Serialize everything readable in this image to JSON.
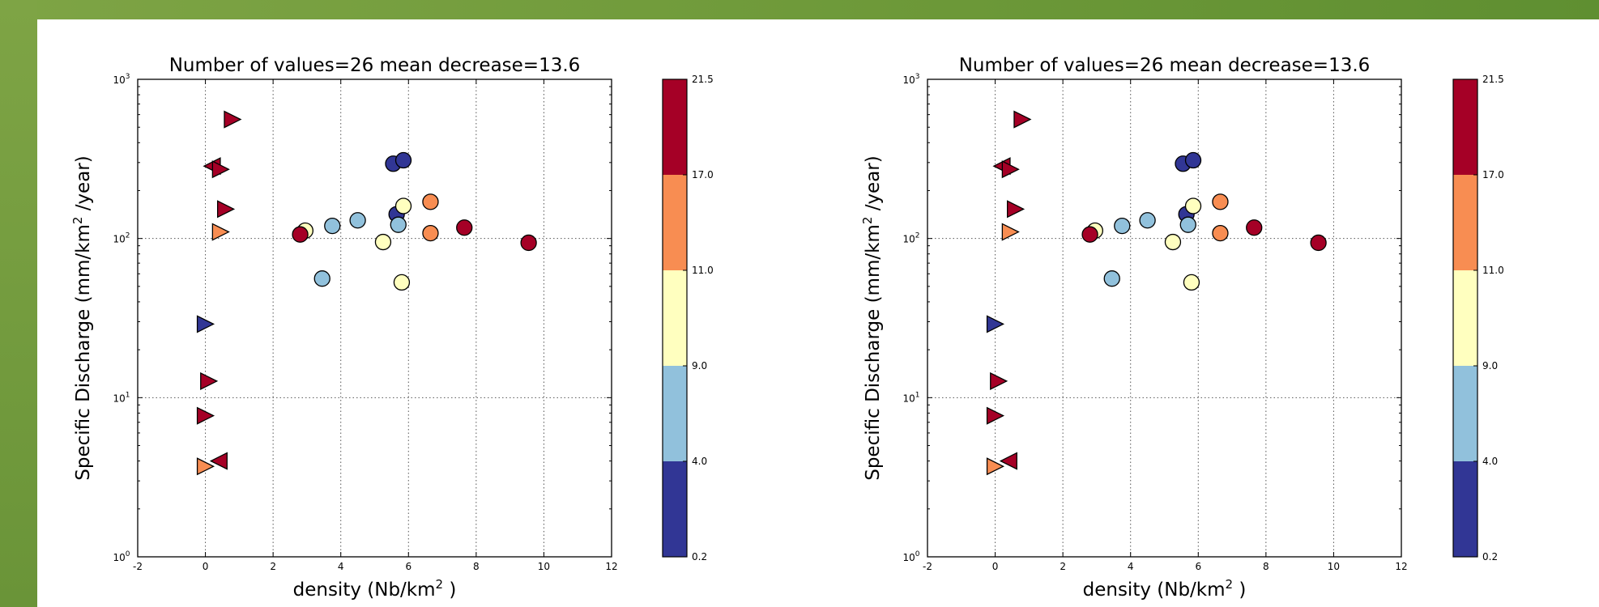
{
  "colors": {
    "dark_blue": "#313695",
    "light_blue": "#91c1dc",
    "yellow": "#ffffbf",
    "orange": "#f88d52",
    "red": "#a50026",
    "frame_green": "#6f9a3a"
  },
  "chart_data": [
    {
      "type": "scatter",
      "title": "Number of values=26 mean decrease=13.6",
      "xlabel": "density (Nb/km",
      "xlabel_sup": "2",
      "xlabel_end": " )",
      "ylabel": "Specific Discharge (mm/km",
      "ylabel_sup": "2",
      "ylabel_end": " /year)",
      "xlim": [
        -2,
        12
      ],
      "ylim": [
        1,
        1000
      ],
      "yscale": "log",
      "grid": true,
      "x_ticks": [
        "-2",
        "0",
        "2",
        "4",
        "6",
        "8",
        "10",
        "12"
      ],
      "y_ticks": [
        {
          "base": "10",
          "exp": "0"
        },
        {
          "base": "10",
          "exp": "1"
        },
        {
          "base": "10",
          "exp": "2"
        },
        {
          "base": "10",
          "exp": "3"
        }
      ],
      "colorbar": {
        "ticks": [
          "0.2",
          "4.0",
          "9.0",
          "11.0",
          "17.0",
          "21.5"
        ],
        "colors": [
          "#313695",
          "#91c1dc",
          "#ffffbf",
          "#f88d52",
          "#a50026"
        ]
      },
      "points": [
        {
          "x": 5.55,
          "y": 295,
          "c": "dark_blue",
          "m": "circle"
        },
        {
          "x": 5.85,
          "y": 310,
          "c": "dark_blue",
          "m": "circle"
        },
        {
          "x": 5.65,
          "y": 142,
          "c": "dark_blue",
          "m": "circle"
        },
        {
          "x": 3.75,
          "y": 120,
          "c": "light_blue",
          "m": "circle"
        },
        {
          "x": 4.5,
          "y": 130,
          "c": "light_blue",
          "m": "circle"
        },
        {
          "x": 5.7,
          "y": 122,
          "c": "light_blue",
          "m": "circle"
        },
        {
          "x": 3.45,
          "y": 56,
          "c": "light_blue",
          "m": "circle"
        },
        {
          "x": 2.95,
          "y": 112,
          "c": "yellow",
          "m": "circle"
        },
        {
          "x": 5.25,
          "y": 95,
          "c": "yellow",
          "m": "circle"
        },
        {
          "x": 5.85,
          "y": 160,
          "c": "yellow",
          "m": "circle"
        },
        {
          "x": 5.8,
          "y": 53,
          "c": "yellow",
          "m": "circle"
        },
        {
          "x": 6.65,
          "y": 170,
          "c": "orange",
          "m": "circle"
        },
        {
          "x": 6.65,
          "y": 108,
          "c": "orange",
          "m": "circle"
        },
        {
          "x": 2.8,
          "y": 106,
          "c": "red",
          "m": "circle"
        },
        {
          "x": 7.65,
          "y": 117,
          "c": "red",
          "m": "circle"
        },
        {
          "x": 9.55,
          "y": 94,
          "c": "red",
          "m": "circle"
        },
        {
          "x": 0.8,
          "y": 560,
          "c": "red",
          "m": "tri-right"
        },
        {
          "x": 0.2,
          "y": 285,
          "c": "red",
          "m": "tri-left"
        },
        {
          "x": 0.45,
          "y": 272,
          "c": "red",
          "m": "tri-right"
        },
        {
          "x": 0.6,
          "y": 153,
          "c": "red",
          "m": "tri-right"
        },
        {
          "x": 0.45,
          "y": 110,
          "c": "orange",
          "m": "tri-right"
        },
        {
          "x": 0.0,
          "y": 29,
          "c": "dark_blue",
          "m": "tri-right"
        },
        {
          "x": 0.1,
          "y": 12.7,
          "c": "red",
          "m": "tri-right"
        },
        {
          "x": 0.0,
          "y": 7.7,
          "c": "red",
          "m": "tri-right"
        },
        {
          "x": 0.4,
          "y": 4.0,
          "c": "red",
          "m": "tri-left"
        },
        {
          "x": 0.0,
          "y": 3.7,
          "c": "orange",
          "m": "tri-right"
        }
      ]
    },
    {
      "type": "scatter",
      "title": "Number of values=26 mean decrease=13.6",
      "xlabel": "density (Nb/km",
      "xlabel_sup": "2",
      "xlabel_end": " )",
      "ylabel": "Specific Discharge (mm/km",
      "ylabel_sup": "2",
      "ylabel_end": " /year)",
      "xlim": [
        -2,
        12
      ],
      "ylim": [
        1,
        1000
      ],
      "yscale": "log",
      "grid": true,
      "x_ticks": [
        "-2",
        "0",
        "2",
        "4",
        "6",
        "8",
        "10",
        "12"
      ],
      "y_ticks": [
        {
          "base": "10",
          "exp": "0"
        },
        {
          "base": "10",
          "exp": "1"
        },
        {
          "base": "10",
          "exp": "2"
        },
        {
          "base": "10",
          "exp": "3"
        }
      ],
      "colorbar": {
        "ticks": [
          "0.2",
          "4.0",
          "9.0",
          "11.0",
          "17.0",
          "21.5"
        ],
        "colors": [
          "#313695",
          "#91c1dc",
          "#ffffbf",
          "#f88d52",
          "#a50026"
        ]
      },
      "points": [
        {
          "x": 5.55,
          "y": 295,
          "c": "dark_blue",
          "m": "circle"
        },
        {
          "x": 5.85,
          "y": 310,
          "c": "dark_blue",
          "m": "circle"
        },
        {
          "x": 5.65,
          "y": 142,
          "c": "dark_blue",
          "m": "circle"
        },
        {
          "x": 3.75,
          "y": 120,
          "c": "light_blue",
          "m": "circle"
        },
        {
          "x": 4.5,
          "y": 130,
          "c": "light_blue",
          "m": "circle"
        },
        {
          "x": 5.7,
          "y": 122,
          "c": "light_blue",
          "m": "circle"
        },
        {
          "x": 3.45,
          "y": 56,
          "c": "light_blue",
          "m": "circle"
        },
        {
          "x": 2.95,
          "y": 112,
          "c": "yellow",
          "m": "circle"
        },
        {
          "x": 5.25,
          "y": 95,
          "c": "yellow",
          "m": "circle"
        },
        {
          "x": 5.85,
          "y": 160,
          "c": "yellow",
          "m": "circle"
        },
        {
          "x": 5.8,
          "y": 53,
          "c": "yellow",
          "m": "circle"
        },
        {
          "x": 6.65,
          "y": 170,
          "c": "orange",
          "m": "circle"
        },
        {
          "x": 6.65,
          "y": 108,
          "c": "orange",
          "m": "circle"
        },
        {
          "x": 2.8,
          "y": 106,
          "c": "red",
          "m": "circle"
        },
        {
          "x": 7.65,
          "y": 117,
          "c": "red",
          "m": "circle"
        },
        {
          "x": 9.55,
          "y": 94,
          "c": "red",
          "m": "circle"
        },
        {
          "x": 0.8,
          "y": 560,
          "c": "red",
          "m": "tri-right"
        },
        {
          "x": 0.2,
          "y": 285,
          "c": "red",
          "m": "tri-left"
        },
        {
          "x": 0.45,
          "y": 272,
          "c": "red",
          "m": "tri-right"
        },
        {
          "x": 0.6,
          "y": 153,
          "c": "red",
          "m": "tri-right"
        },
        {
          "x": 0.45,
          "y": 110,
          "c": "orange",
          "m": "tri-right"
        },
        {
          "x": 0.0,
          "y": 29,
          "c": "dark_blue",
          "m": "tri-right"
        },
        {
          "x": 0.1,
          "y": 12.7,
          "c": "red",
          "m": "tri-right"
        },
        {
          "x": 0.0,
          "y": 7.7,
          "c": "red",
          "m": "tri-right"
        },
        {
          "x": 0.4,
          "y": 4.0,
          "c": "red",
          "m": "tri-left"
        },
        {
          "x": 0.0,
          "y": 3.7,
          "c": "orange",
          "m": "tri-right"
        }
      ]
    }
  ]
}
